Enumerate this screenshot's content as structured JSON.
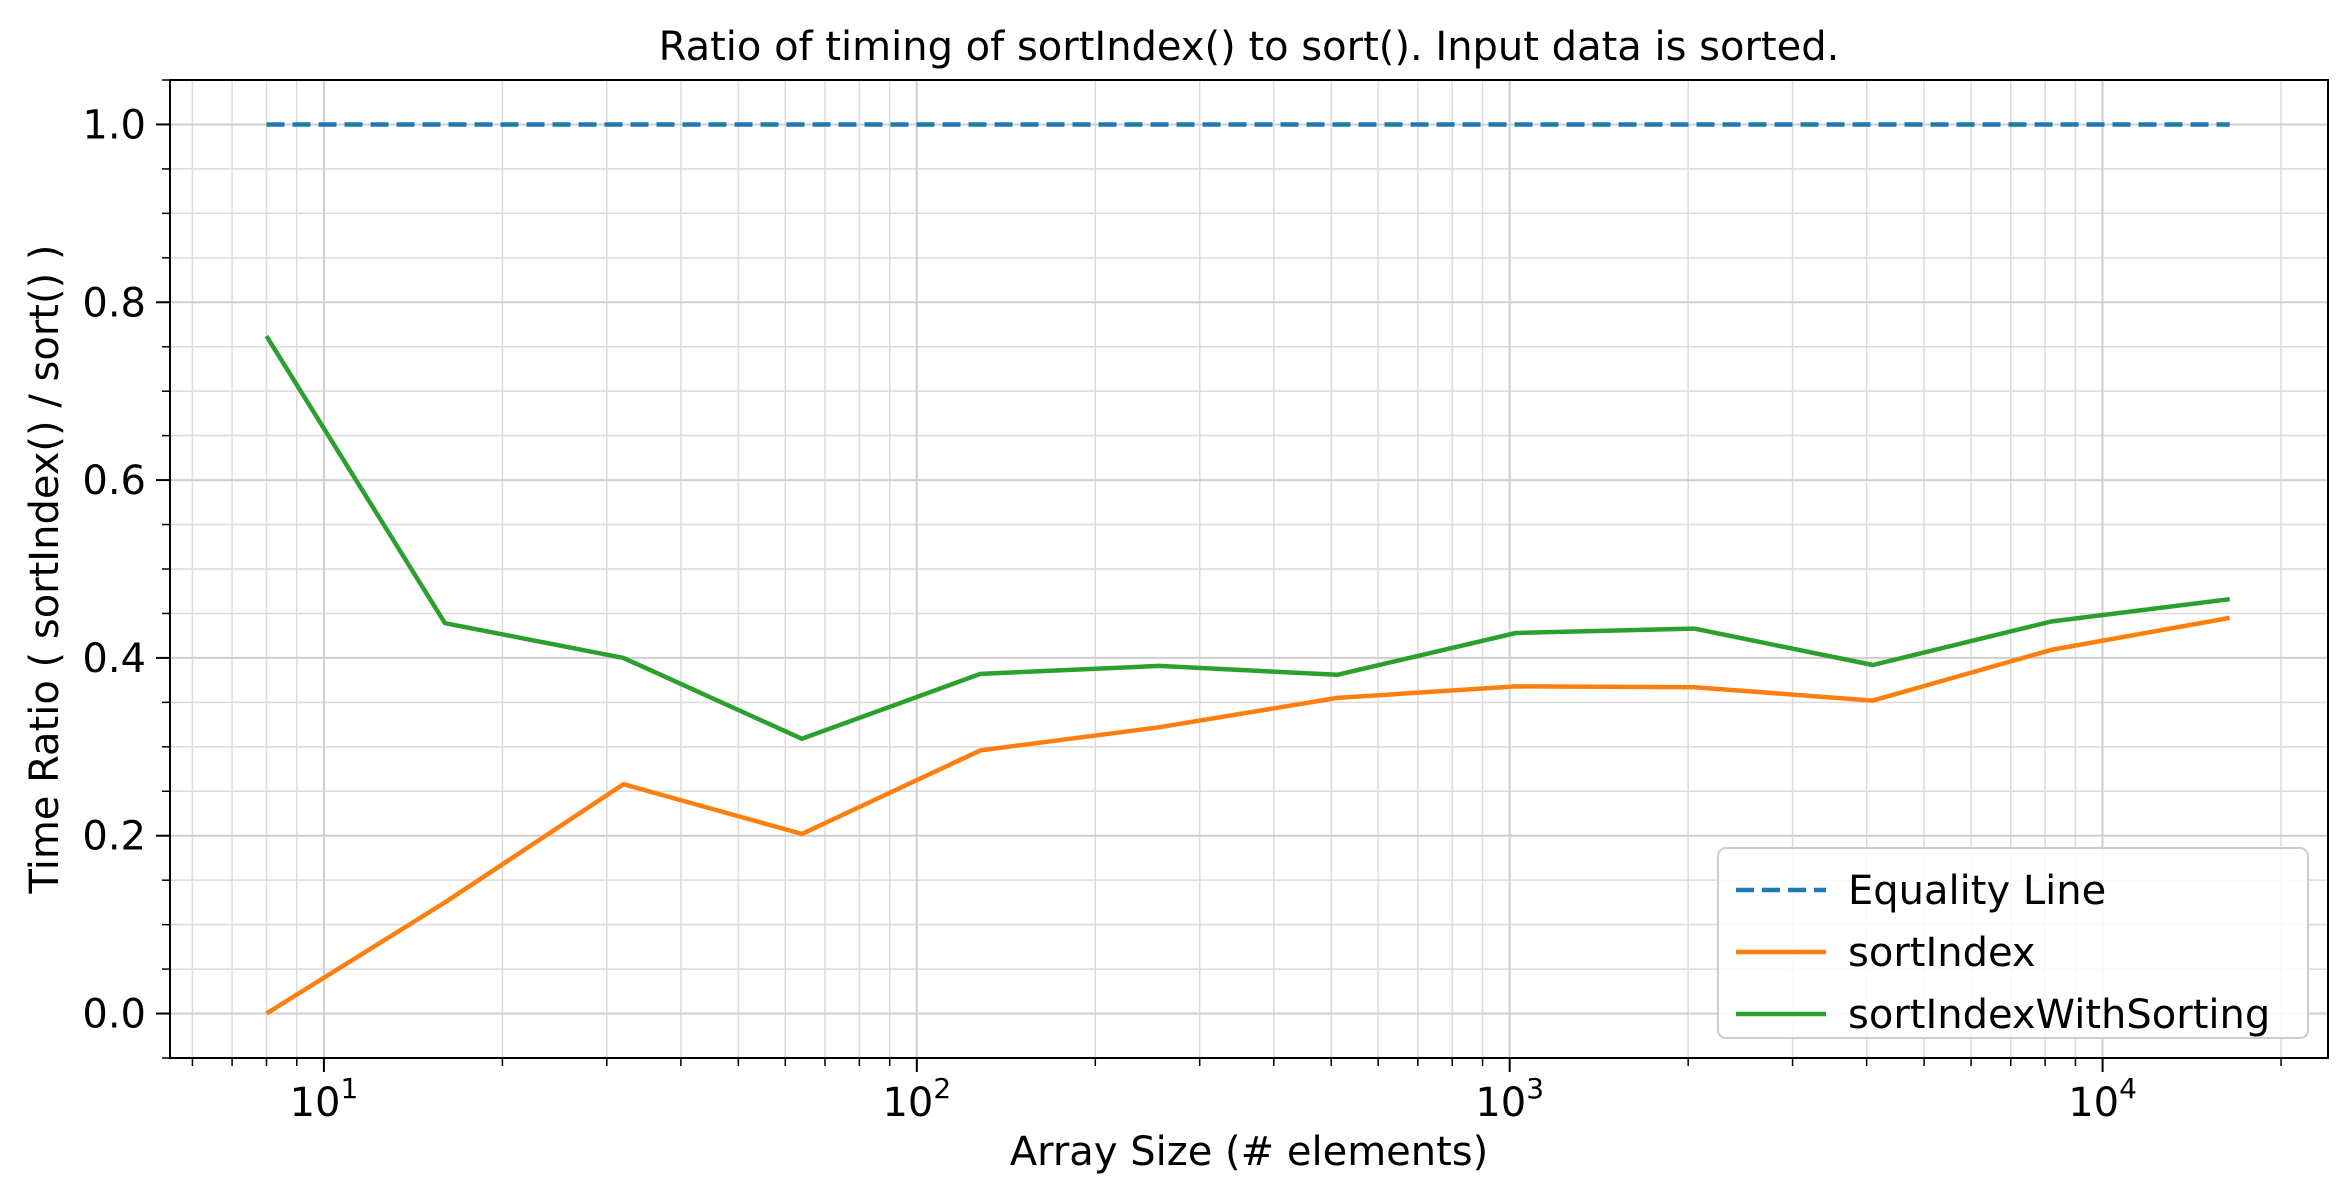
{
  "chart_data": {
    "type": "line",
    "title": "Ratio of timing of sortIndex() to sort(). Input data is sorted.",
    "xlabel": "Array Size (# elements)",
    "ylabel": "Time Ratio ( sortIndex() / sort() )",
    "xscale": "log",
    "xlim": [
      5.5,
      24000
    ],
    "ylim": [
      -0.05,
      1.05
    ],
    "x_ticks": [
      {
        "value": 10,
        "base": "10",
        "exp": "1"
      },
      {
        "value": 100,
        "base": "10",
        "exp": "2"
      },
      {
        "value": 1000,
        "base": "10",
        "exp": "3"
      },
      {
        "value": 10000,
        "base": "10",
        "exp": "4"
      }
    ],
    "y_ticks": [
      {
        "value": 0.0,
        "label": "0.0"
      },
      {
        "value": 0.2,
        "label": "0.2"
      },
      {
        "value": 0.4,
        "label": "0.4"
      },
      {
        "value": 0.6,
        "label": "0.6"
      },
      {
        "value": 0.8,
        "label": "0.8"
      },
      {
        "value": 1.0,
        "label": "1.0"
      }
    ],
    "grid": true,
    "minor_grid": true,
    "legend_position": "bottom-right",
    "x": [
      8,
      16,
      32,
      64,
      128,
      256,
      512,
      1024,
      2048,
      4096,
      8192,
      16384
    ],
    "series": [
      {
        "name": "Equality Line",
        "color": "#1f77b4",
        "style": "dashed",
        "values": [
          1,
          1,
          1,
          1,
          1,
          1,
          1,
          1,
          1,
          1,
          1,
          1
        ]
      },
      {
        "name": "sortIndex",
        "color": "#ff7f0e",
        "style": "solid",
        "values": [
          0.0,
          0.125,
          0.258,
          0.202,
          0.296,
          0.322,
          0.355,
          0.368,
          0.367,
          0.352,
          0.409,
          0.445
        ]
      },
      {
        "name": "sortIndexWithSorting",
        "color": "#2ca02c",
        "style": "solid",
        "values": [
          0.762,
          0.439,
          0.4,
          0.309,
          0.382,
          0.391,
          0.381,
          0.428,
          0.433,
          0.392,
          0.441,
          0.466
        ]
      }
    ]
  }
}
